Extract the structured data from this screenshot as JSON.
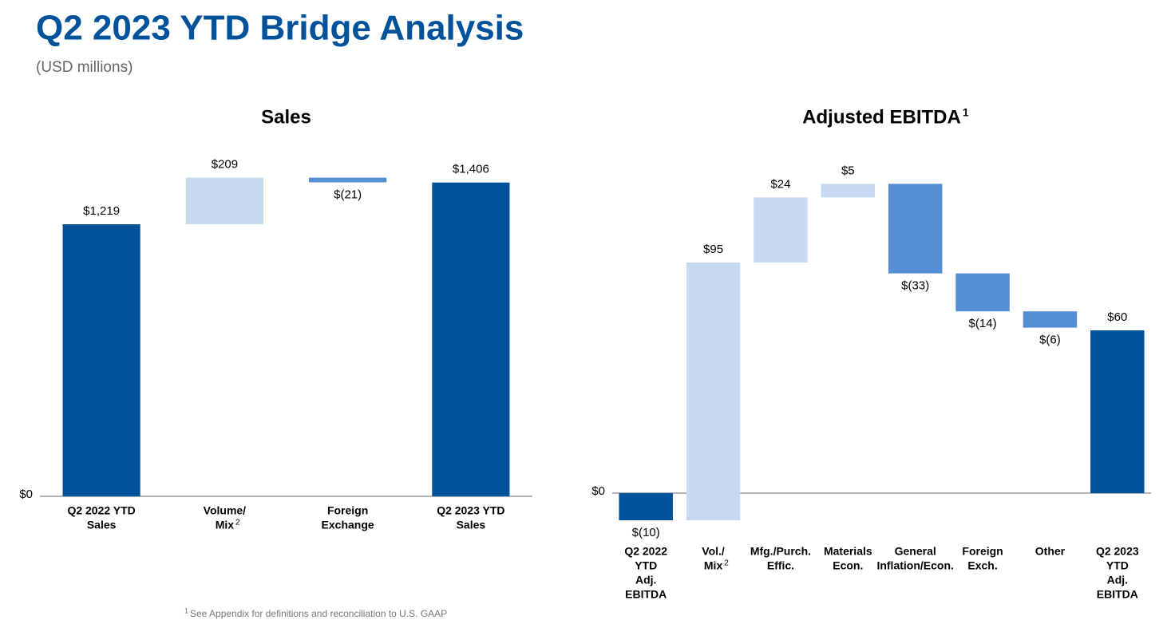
{
  "title": "Q2 2023 YTD Bridge Analysis",
  "subtitle": "(USD millions)",
  "footnote": {
    "mark": "1",
    "text": "See Appendix for definitions and reconciliation to U.S. GAAP"
  },
  "chart_data": [
    {
      "type": "waterfall",
      "title": "Sales",
      "categories": [
        [
          "Q2 2022 YTD",
          "Sales"
        ],
        [
          "Volume/",
          "Mix"
        ],
        [
          "Foreign",
          "Exchange"
        ],
        [
          "Q2 2023 YTD",
          "Sales"
        ]
      ],
      "category_notes": [
        null,
        "2",
        null,
        null
      ],
      "values": [
        1219,
        209,
        -21,
        1406
      ],
      "value_labels": [
        "$1,219",
        "$209",
        "$(21)",
        "$1,406"
      ],
      "colors": {
        "total": "#00529b",
        "increase": "#c6d9f0",
        "decrease": "#558ed5"
      },
      "ylim": [
        0,
        1600
      ],
      "yticks": [
        {
          "value": 0,
          "label": "$0"
        }
      ]
    },
    {
      "type": "waterfall",
      "title": "Adjusted EBITDA",
      "title_note": "1",
      "categories": [
        [
          "Q2 2022",
          "YTD",
          "Adj.",
          "EBITDA"
        ],
        [
          "Vol./",
          "Mix"
        ],
        [
          "Mfg./Purch.",
          "Effic."
        ],
        [
          "Materials",
          "Econ."
        ],
        [
          "General",
          "Inflation/Econ."
        ],
        [
          "Foreign",
          "Exch."
        ],
        [
          "Other"
        ],
        [
          "Q2 2023",
          "YTD",
          "Adj.",
          "EBITDA"
        ]
      ],
      "category_notes": [
        null,
        "2",
        null,
        null,
        null,
        null,
        null,
        null
      ],
      "values": [
        -10,
        95,
        24,
        5,
        -33,
        -14,
        -6,
        60
      ],
      "value_labels": [
        "$(10)",
        "$95",
        "$24",
        "$5",
        "$(33)",
        "$(14)",
        "$(6)",
        "$60"
      ],
      "colors": {
        "total": "#00529b",
        "increase": "#c6d9f0",
        "decrease": "#558ed5"
      },
      "ylim": [
        -20,
        130
      ],
      "yticks": [
        {
          "value": 0,
          "label": "$0"
        }
      ]
    }
  ]
}
